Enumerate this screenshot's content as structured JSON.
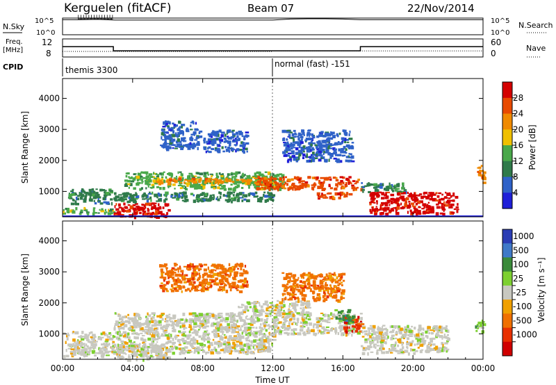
{
  "header": {
    "station": "Kerguelen (fitACF)",
    "beam": "Beam 07",
    "date": "22/Nov/2014"
  },
  "colors": {
    "power": [
      "#1f1fd8",
      "#2f62c8",
      "#2f7a4a",
      "#49a84a",
      "#f0c000",
      "#f08a00",
      "#e84a00",
      "#d40000"
    ],
    "velocity": [
      "#2a3cb4",
      "#3f79c8",
      "#3a8a3a",
      "#7dd030",
      "#c8c8c0",
      "#f0a000",
      "#f07000",
      "#e83000",
      "#d00000"
    ],
    "ground_scatter": "#c8c8c0"
  },
  "chart_data": [
    {
      "type": "line",
      "name": "nsky-nsearch",
      "left_label": "N.Sky",
      "right_label": "N.Search",
      "left_ticks": [
        "10^5",
        "10^0"
      ],
      "right_ticks": [
        "10^5",
        "10^0"
      ],
      "xlim": [
        0,
        24
      ],
      "nsky_log10": [
        [
          0,
          4.5
        ],
        [
          1,
          4.5
        ],
        [
          2,
          4.6
        ],
        [
          3,
          4.4
        ],
        [
          6,
          4.4
        ],
        [
          10,
          4.4
        ],
        [
          12,
          4.4
        ],
        [
          13,
          4.7
        ],
        [
          14,
          4.8
        ],
        [
          15,
          4.8
        ],
        [
          16,
          4.7
        ],
        [
          17,
          4.5
        ],
        [
          20,
          4.5
        ],
        [
          24,
          4.5
        ]
      ]
    },
    {
      "type": "line",
      "name": "frequency-nave",
      "left_label": "Freq.",
      "left_unit": "[MHz]",
      "left_ticks": [
        "12",
        "8"
      ],
      "right_label": "Nave",
      "right_ticks": [
        "60",
        "0"
      ],
      "xlim": [
        0,
        24
      ],
      "frequency_mhz": [
        [
          0,
          11.6
        ],
        [
          2.9,
          11.6
        ],
        [
          2.9,
          10.1
        ],
        [
          17,
          10.1
        ],
        [
          17,
          11.6
        ],
        [
          24,
          11.6
        ]
      ],
      "nave": [
        [
          0,
          30
        ],
        [
          12,
          30
        ],
        [
          12,
          33
        ],
        [
          24,
          33
        ]
      ],
      "cpid_label": "CPID",
      "cpid_segments": [
        {
          "start": 0,
          "end": 12,
          "label": "themis 3300"
        },
        {
          "start": 12,
          "end": 24,
          "label": "normal (fast) -151"
        }
      ]
    },
    {
      "type": "heatmap",
      "name": "power",
      "ylabel": "Slant Range [km]",
      "y_ticks": [
        "1000",
        "2000",
        "3000",
        "4000"
      ],
      "ylim": [
        180,
        4640
      ],
      "xlim": [
        0,
        24
      ],
      "colorbar": {
        "label": "Power [dB]",
        "ticks": [
          "4",
          "8",
          "12",
          "16",
          "20",
          "24",
          "28"
        ],
        "range": [
          0,
          32
        ]
      },
      "features": [
        {
          "x0": 0.0,
          "x1": 2.9,
          "y0": 300,
          "y1": 500,
          "level": 3
        },
        {
          "x0": 0.3,
          "x1": 2.8,
          "y0": 600,
          "y1": 1100,
          "level": 2
        },
        {
          "x0": 2.9,
          "x1": 6.0,
          "y0": 200,
          "y1": 650,
          "level": 7
        },
        {
          "x0": 2.9,
          "x1": 12.0,
          "y0": 700,
          "y1": 1000,
          "level": 2
        },
        {
          "x0": 3.5,
          "x1": 12.5,
          "y0": 1100,
          "y1": 1650,
          "level": 3
        },
        {
          "x0": 5.0,
          "x1": 12.0,
          "y0": 1300,
          "y1": 1450,
          "level": 5
        },
        {
          "x0": 5.5,
          "x1": 7.8,
          "y0": 2400,
          "y1": 3300,
          "level": 1
        },
        {
          "x0": 8.0,
          "x1": 10.5,
          "y0": 2300,
          "y1": 3000,
          "level": 1
        },
        {
          "x0": 11.0,
          "x1": 17.0,
          "y0": 1100,
          "y1": 1500,
          "level": 6
        },
        {
          "x0": 12.5,
          "x1": 16.5,
          "y0": 2000,
          "y1": 3000,
          "level": 1
        },
        {
          "x0": 14.5,
          "x1": 16.5,
          "y0": 800,
          "y1": 1000,
          "level": 6
        },
        {
          "x0": 17.0,
          "x1": 19.5,
          "y0": 1000,
          "y1": 1300,
          "level": 2
        },
        {
          "x0": 17.5,
          "x1": 22.5,
          "y0": 300,
          "y1": 1000,
          "level": 7
        },
        {
          "x0": 23.6,
          "x1": 24.0,
          "y0": 1300,
          "y1": 1900,
          "level": 5
        }
      ]
    },
    {
      "type": "heatmap",
      "name": "velocity",
      "ylabel": "Slant Range [km]",
      "y_ticks": [
        "1000",
        "2000",
        "3000",
        "4000"
      ],
      "ylim": [
        180,
        4640
      ],
      "xlim": [
        0,
        24
      ],
      "x_ticks": [
        "00:00",
        "04:00",
        "08:00",
        "12:00",
        "16:00",
        "20:00",
        "00:00"
      ],
      "xlabel": "Time UT",
      "colorbar": {
        "label": "Velocity [m s⁻¹]",
        "ticks": [
          "1000",
          "500",
          "100",
          "25",
          "-25",
          "-100",
          "-500",
          "-1000"
        ]
      },
      "features": [
        {
          "x0": 0.0,
          "x1": 2.9,
          "y0": 300,
          "y1": 1100,
          "level": 4
        },
        {
          "x0": 2.9,
          "x1": 12.0,
          "y0": 400,
          "y1": 1700,
          "level": 4
        },
        {
          "x0": 3.0,
          "x1": 6.0,
          "y0": 200,
          "y1": 700,
          "level": 4
        },
        {
          "x0": 5.5,
          "x1": 10.5,
          "y0": 2400,
          "y1": 3300,
          "level": 6
        },
        {
          "x0": 10.0,
          "x1": 14.0,
          "y0": 1700,
          "y1": 2100,
          "level": 4
        },
        {
          "x0": 12.0,
          "x1": 17.0,
          "y0": 1000,
          "y1": 1700,
          "level": 4
        },
        {
          "x0": 12.5,
          "x1": 16.0,
          "y0": 2100,
          "y1": 3000,
          "level": 6
        },
        {
          "x0": 16.0,
          "x1": 17.0,
          "y0": 1100,
          "y1": 1600,
          "level": 7
        },
        {
          "x0": 15.5,
          "x1": 16.5,
          "y0": 1400,
          "y1": 1800,
          "level": 2
        },
        {
          "x0": 17.0,
          "x1": 22.0,
          "y0": 400,
          "y1": 1300,
          "level": 4
        },
        {
          "x0": 23.5,
          "x1": 24.0,
          "y0": 1100,
          "y1": 1500,
          "level": 3
        }
      ]
    }
  ]
}
